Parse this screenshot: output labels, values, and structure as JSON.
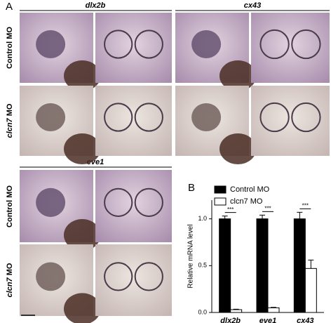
{
  "panel_a": {
    "label": "A",
    "genes": [
      "dlx2b",
      "cx43",
      "eve1"
    ],
    "row_labels": [
      {
        "text": "Control MO"
      },
      {
        "gene": "clcn7",
        "suffix": "MO"
      }
    ]
  },
  "panel_b": {
    "label": "B"
  },
  "chart_data": {
    "type": "bar",
    "y_label": "Relative mRNA level",
    "categories": [
      "dlx2b",
      "eve1",
      "cx43"
    ],
    "series": [
      {
        "name": "Control MO",
        "color": "#000000",
        "values": [
          1.0,
          1.0,
          1.0
        ],
        "errors": [
          0.03,
          0.04,
          0.07
        ]
      },
      {
        "name": "clcn7 MO",
        "color": "#ffffff",
        "values": [
          0.03,
          0.05,
          0.47
        ],
        "errors": [
          0.005,
          0.005,
          0.09
        ]
      }
    ],
    "annotations": [
      "***",
      "***",
      "***"
    ],
    "ylim": [
      0,
      1.2
    ],
    "yticks": [
      {
        "value": 0,
        "label": "0.0"
      },
      0.5,
      {
        "value": 1,
        "label": "1.0"
      }
    ],
    "legend": "top"
  }
}
